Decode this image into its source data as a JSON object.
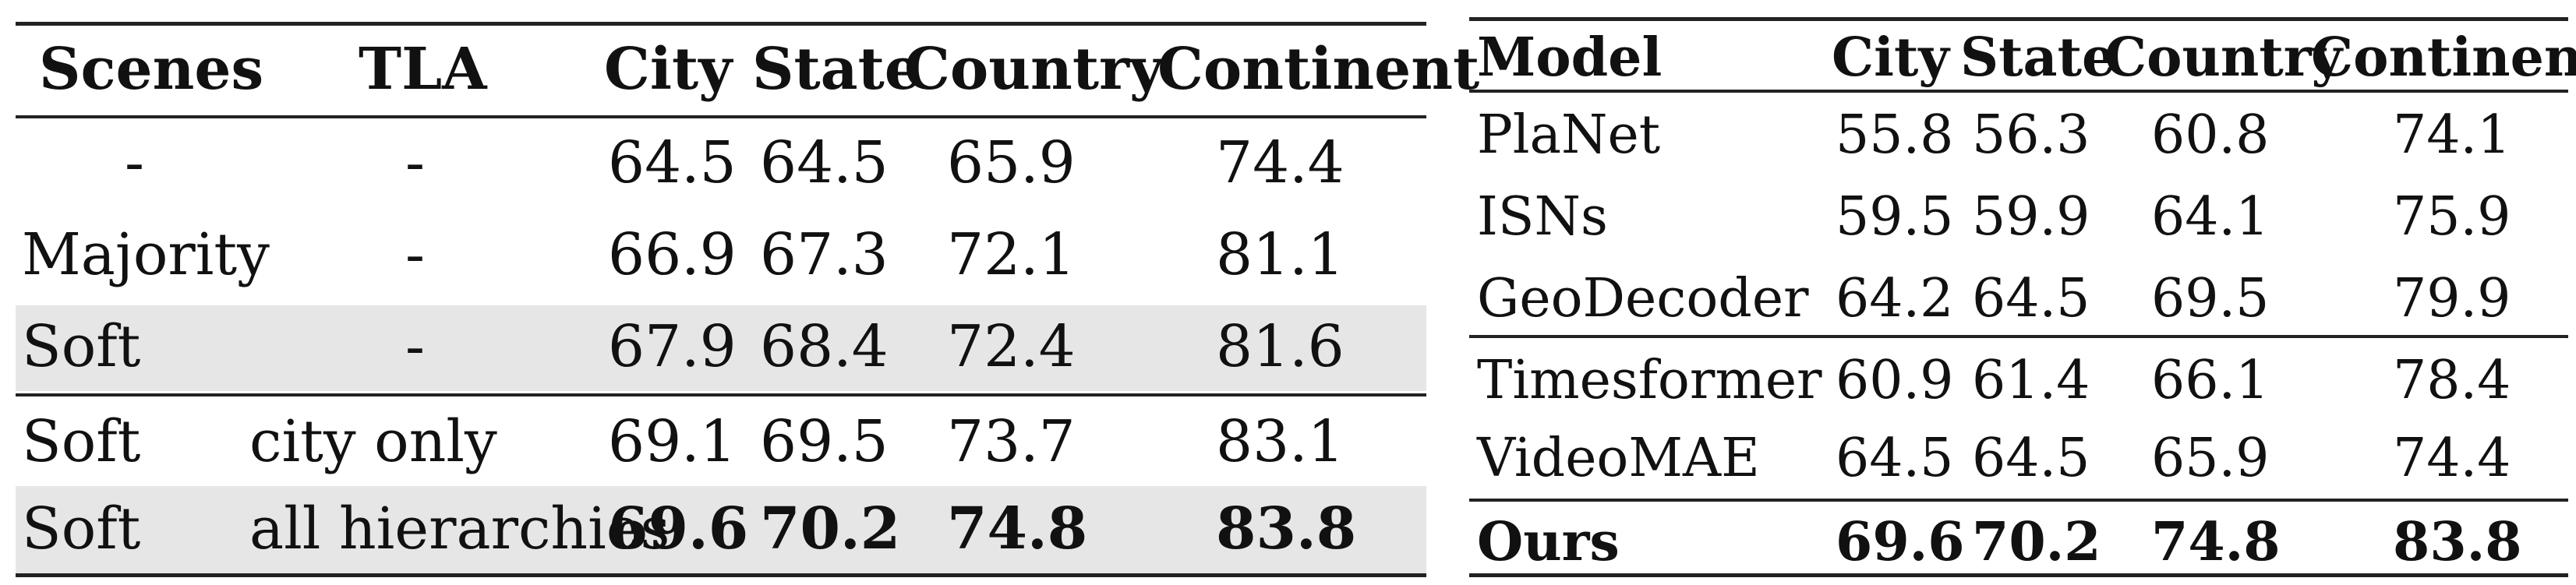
{
  "left_table": {
    "headers": [
      "Scenes",
      "TLA",
      "City",
      "State",
      "Country",
      "Continent"
    ],
    "rows": [
      [
        "-",
        "-",
        "64.5",
        "64.5",
        "65.9",
        "74.4"
      ],
      [
        "Majority",
        "-",
        "66.9",
        "67.3",
        "72.1",
        "81.1"
      ],
      [
        "Soft",
        "-",
        "67.9",
        "68.4",
        "72.4",
        "81.6"
      ],
      [
        "Soft",
        "city only",
        "69.1",
        "69.5",
        "73.7",
        "83.1"
      ],
      [
        "Soft",
        "all hierarchies",
        "69.6",
        "70.2",
        "74.8",
        "83.8"
      ]
    ],
    "shaded_rows": [
      2,
      4
    ],
    "bold_cells": "last row numeric values"
  },
  "right_table": {
    "headers": [
      "Model",
      "City",
      "State",
      "Country",
      "Continent"
    ],
    "rows": [
      [
        "PlaNet",
        "55.8",
        "56.3",
        "60.8",
        "74.1"
      ],
      [
        "ISNs",
        "59.5",
        "59.9",
        "64.1",
        "75.9"
      ],
      [
        "GeoDecoder",
        "64.2",
        "64.5",
        "69.5",
        "79.9"
      ],
      [
        "Timesformer",
        "60.9",
        "61.4",
        "66.1",
        "78.4"
      ],
      [
        "VideoMAE",
        "64.5",
        "64.5",
        "65.9",
        "74.4"
      ],
      [
        "Ours",
        "69.6",
        "70.2",
        "74.8",
        "83.8"
      ]
    ],
    "bold_rows": [
      5
    ]
  },
  "colors": {
    "rule": "#222222",
    "shade": "#e6e6e6",
    "text": "#111111"
  }
}
